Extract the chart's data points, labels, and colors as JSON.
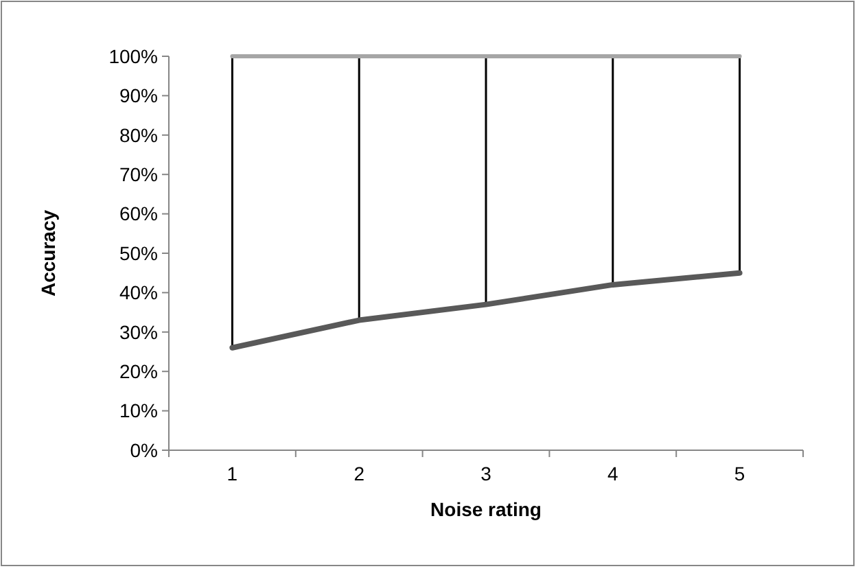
{
  "chart_data": {
    "type": "line",
    "xlabel": "Noise rating",
    "ylabel": "Accuracy",
    "categories": [
      "1",
      "2",
      "3",
      "4",
      "5"
    ],
    "ylim": [
      0,
      100
    ],
    "yticks": [
      {
        "value": 0,
        "label": "0%"
      },
      {
        "value": 10,
        "label": "10%"
      },
      {
        "value": 20,
        "label": "20%"
      },
      {
        "value": 30,
        "label": "30%"
      },
      {
        "value": 40,
        "label": "40%"
      },
      {
        "value": 50,
        "label": "50%"
      },
      {
        "value": 60,
        "label": "60%"
      },
      {
        "value": 70,
        "label": "70%"
      },
      {
        "value": 80,
        "label": "80%"
      },
      {
        "value": 90,
        "label": "90%"
      },
      {
        "value": 100,
        "label": "100%"
      }
    ],
    "series": [
      {
        "type": "bar",
        "color": "#000000",
        "base": [
          26,
          33,
          37,
          42,
          45
        ],
        "values": [
          74,
          67,
          63,
          58,
          55
        ]
      },
      {
        "color": "#a6a6a6",
        "values": [
          100,
          100,
          100,
          100,
          100
        ]
      },
      {
        "color": "#595959",
        "values": [
          26,
          33,
          37,
          42,
          45
        ]
      }
    ],
    "grid": false,
    "marker": "none"
  }
}
